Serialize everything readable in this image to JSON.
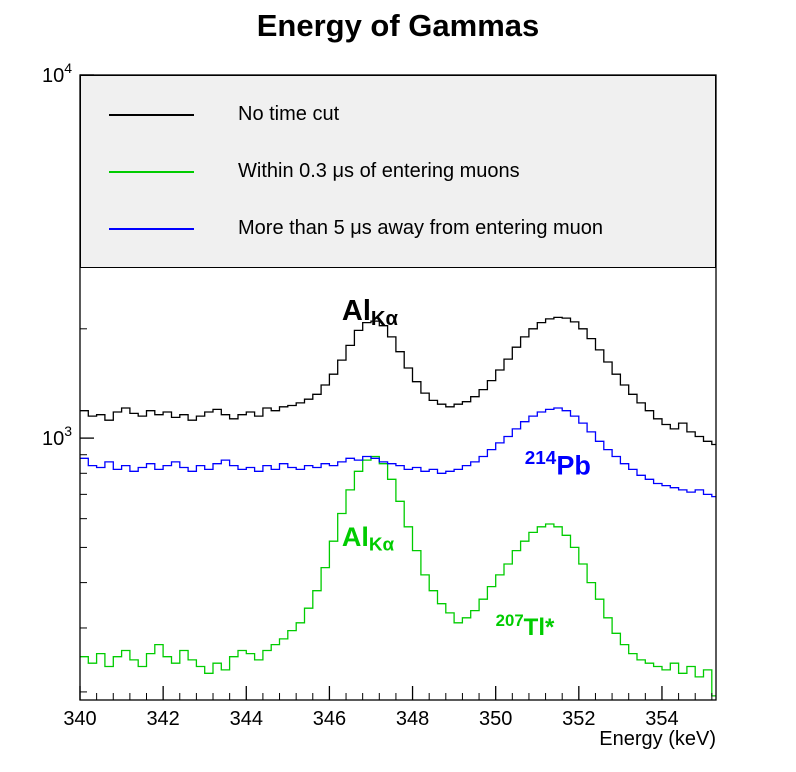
{
  "chart_data": {
    "type": "line",
    "subtype": "histogram-steps",
    "title": "Energy of Gammas",
    "xlabel": "Energy (keV)",
    "ylabel": "",
    "xlim": [
      340,
      355.3
    ],
    "ylim": [
      190,
      10000
    ],
    "yscale": "log",
    "grid": false,
    "legend_position": "top",
    "x_major_ticks": [
      340,
      342,
      344,
      346,
      348,
      350,
      352,
      354
    ],
    "x_minor_step": 0.4,
    "y_major_ticks": [
      {
        "value": 1000,
        "base": "10",
        "exp": "3"
      },
      {
        "value": 10000,
        "base": "10",
        "exp": "4"
      }
    ],
    "bin_start": 340,
    "bin_width": 0.2,
    "colors": {
      "legend_background": "#f0f0f0",
      "frame": "#000000"
    },
    "series": [
      {
        "name": "No time cut",
        "color": "#000000",
        "values": [
          1190,
          1150,
          1160,
          1120,
          1180,
          1210,
          1170,
          1150,
          1190,
          1160,
          1180,
          1140,
          1160,
          1120,
          1150,
          1180,
          1200,
          1160,
          1130,
          1160,
          1180,
          1150,
          1210,
          1190,
          1220,
          1230,
          1250,
          1280,
          1320,
          1400,
          1500,
          1640,
          1800,
          1980,
          2080,
          2100,
          2040,
          1900,
          1730,
          1560,
          1430,
          1330,
          1270,
          1240,
          1220,
          1240,
          1260,
          1300,
          1360,
          1440,
          1540,
          1650,
          1780,
          1900,
          2000,
          2080,
          2130,
          2150,
          2140,
          2090,
          2000,
          1880,
          1750,
          1620,
          1500,
          1400,
          1320,
          1250,
          1190,
          1130,
          1090,
          1060,
          1100,
          1040,
          1010,
          980,
          960
        ]
      },
      {
        "name": "Within 0.3 μs of entering muons",
        "color": "#00cc00",
        "values": [
          250,
          240,
          255,
          235,
          250,
          260,
          245,
          235,
          255,
          270,
          250,
          240,
          260,
          245,
          235,
          225,
          240,
          230,
          250,
          260,
          255,
          245,
          260,
          270,
          280,
          295,
          310,
          340,
          380,
          440,
          520,
          620,
          720,
          810,
          870,
          890,
          850,
          770,
          670,
          570,
          490,
          420,
          380,
          350,
          330,
          310,
          320,
          335,
          360,
          390,
          420,
          450,
          490,
          520,
          550,
          570,
          580,
          570,
          540,
          500,
          450,
          400,
          360,
          320,
          290,
          270,
          255,
          245,
          240,
          235,
          230,
          240,
          225,
          235,
          220,
          230,
          195
        ]
      },
      {
        "name": "More than 5 μs away from entering muon",
        "color": "#0000ff",
        "values": [
          880,
          840,
          830,
          860,
          820,
          840,
          810,
          830,
          850,
          820,
          840,
          860,
          830,
          810,
          840,
          820,
          850,
          870,
          840,
          820,
          830,
          810,
          840,
          820,
          850,
          830,
          820,
          840,
          830,
          850,
          840,
          860,
          880,
          870,
          890,
          880,
          860,
          850,
          840,
          820,
          830,
          810,
          820,
          800,
          810,
          820,
          840,
          860,
          890,
          930,
          970,
          1010,
          1060,
          1110,
          1150,
          1180,
          1200,
          1210,
          1190,
          1150,
          1100,
          1040,
          980,
          930,
          890,
          850,
          820,
          790,
          770,
          750,
          740,
          730,
          720,
          710,
          720,
          700,
          690
        ]
      }
    ],
    "annotations": [
      {
        "main": "Al",
        "sub": "Kα",
        "sup": "",
        "color": "#000000",
        "x": 346.3,
        "y": 2450,
        "size": 29
      },
      {
        "main": "Pb",
        "sub": "",
        "sup": "214",
        "color": "#0000ff",
        "x": 350.7,
        "y": 930,
        "size": 27
      },
      {
        "main": "Al",
        "sub": "Kα",
        "sup": "",
        "color": "#00cc00",
        "x": 346.3,
        "y": 580,
        "size": 27
      },
      {
        "main": "Tl*",
        "sub": "",
        "sup": "207",
        "color": "#00cc00",
        "x": 350.0,
        "y": 330,
        "size": 24
      }
    ]
  }
}
